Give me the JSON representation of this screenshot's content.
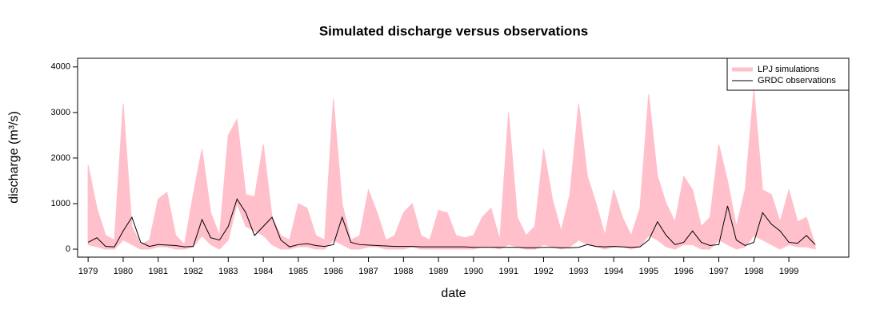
{
  "chart_data": {
    "type": "band-line",
    "title": "Simulated discharge versus observations",
    "xlabel": "date",
    "ylabel": "discharge (m³/s)",
    "x": [
      1979.0,
      1979.25,
      1979.5,
      1979.75,
      1980.0,
      1980.25,
      1980.5,
      1980.75,
      1981.0,
      1981.25,
      1981.5,
      1981.75,
      1982.0,
      1982.25,
      1982.5,
      1982.75,
      1983.0,
      1983.25,
      1983.5,
      1983.75,
      1984.0,
      1984.25,
      1984.5,
      1984.75,
      1985.0,
      1985.25,
      1985.5,
      1985.75,
      1986.0,
      1986.25,
      1986.5,
      1986.75,
      1987.0,
      1987.25,
      1987.5,
      1987.75,
      1988.0,
      1988.25,
      1988.5,
      1988.75,
      1989.0,
      1989.25,
      1989.5,
      1989.75,
      1990.0,
      1990.25,
      1990.5,
      1990.75,
      1991.0,
      1991.25,
      1991.5,
      1991.75,
      1992.0,
      1992.25,
      1992.5,
      1992.75,
      1993.0,
      1993.25,
      1993.5,
      1993.75,
      1994.0,
      1994.25,
      1994.5,
      1994.75,
      1995.0,
      1995.25,
      1995.5,
      1995.75,
      1996.0,
      1996.25,
      1996.5,
      1996.75,
      1997.0,
      1997.25,
      1997.5,
      1997.75,
      1998.0,
      1998.25,
      1998.5,
      1998.75,
      1999.0,
      1999.25,
      1999.5,
      1999.75
    ],
    "series": [
      {
        "name": "LPJ simulations",
        "color": "#ffc0cb",
        "values": [
          1850,
          900,
          300,
          200,
          3200,
          500,
          100,
          200,
          1100,
          1250,
          300,
          100,
          1200,
          2200,
          800,
          300,
          2500,
          2850,
          1200,
          1150,
          2300,
          700,
          300,
          200,
          1000,
          900,
          300,
          200,
          3300,
          1000,
          200,
          300,
          1300,
          800,
          200,
          300,
          800,
          1000,
          300,
          200,
          850,
          800,
          300,
          250,
          300,
          700,
          900,
          200,
          3000,
          700,
          300,
          500,
          2200,
          1100,
          400,
          1200,
          3200,
          1600,
          1000,
          300,
          1300,
          700,
          300,
          900,
          3400,
          1600,
          1000,
          600,
          1600,
          1300,
          500,
          700,
          2300,
          1500,
          500,
          1300,
          3500,
          1300,
          1200,
          600,
          1300,
          600,
          700,
          100
        ],
        "lower": [
          100,
          50,
          0,
          0,
          200,
          100,
          0,
          0,
          50,
          50,
          0,
          0,
          50,
          300,
          100,
          0,
          200,
          1000,
          500,
          400,
          300,
          100,
          0,
          0,
          50,
          50,
          0,
          0,
          200,
          100,
          0,
          0,
          50,
          50,
          0,
          0,
          0,
          50,
          0,
          0,
          0,
          0,
          0,
          0,
          0,
          50,
          50,
          0,
          100,
          50,
          0,
          0,
          100,
          50,
          0,
          50,
          200,
          100,
          50,
          0,
          50,
          50,
          0,
          50,
          300,
          200,
          50,
          0,
          100,
          100,
          0,
          0,
          200,
          100,
          0,
          50,
          300,
          200,
          100,
          0,
          100,
          50,
          50,
          0
        ]
      },
      {
        "name": "GRDC observations",
        "color": "#000000",
        "values": [
          150,
          250,
          60,
          50,
          400,
          700,
          150,
          60,
          100,
          90,
          80,
          50,
          60,
          650,
          250,
          200,
          500,
          1100,
          800,
          300,
          500,
          700,
          200,
          50,
          100,
          120,
          80,
          60,
          100,
          700,
          150,
          100,
          90,
          80,
          70,
          60,
          60,
          60,
          50,
          50,
          50,
          50,
          50,
          50,
          40,
          40,
          40,
          40,
          40,
          40,
          30,
          30,
          40,
          40,
          30,
          30,
          40,
          100,
          60,
          50,
          60,
          50,
          40,
          50,
          200,
          600,
          300,
          100,
          150,
          400,
          150,
          80,
          100,
          950,
          200,
          80,
          150,
          800,
          550,
          400,
          150,
          130,
          300,
          100
        ]
      }
    ],
    "xlim": [
      1978.7,
      2000.71
    ],
    "xticks": [
      1979,
      1980,
      1981,
      1982,
      1983,
      1984,
      1985,
      1986,
      1987,
      1988,
      1989,
      1990,
      1991,
      1992,
      1993,
      1994,
      1995,
      1996,
      1997,
      1998,
      1999
    ],
    "ylim": [
      -175,
      4190
    ],
    "yticks": [
      0,
      1000,
      2000,
      3000,
      4000
    ],
    "legend": "topright"
  }
}
